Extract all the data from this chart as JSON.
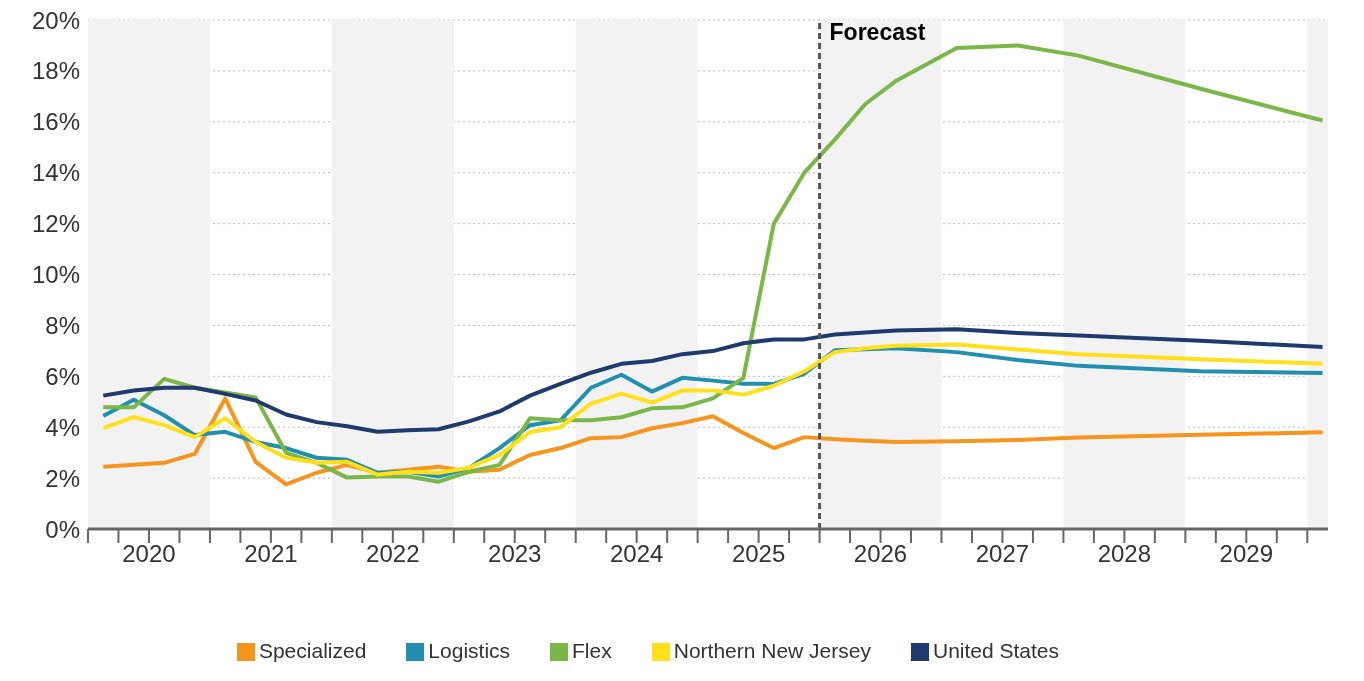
{
  "chart_data": {
    "type": "line",
    "x": [
      2020.125,
      2020.375,
      2020.625,
      2020.875,
      2021.125,
      2021.375,
      2021.625,
      2021.875,
      2022.125,
      2022.375,
      2022.625,
      2022.875,
      2023.125,
      2023.375,
      2023.625,
      2023.875,
      2024.125,
      2024.375,
      2024.625,
      2024.875,
      2025.125,
      2025.375,
      2025.625,
      2025.875,
      2026.125,
      2026.375,
      2026.625,
      2027.125,
      2027.625,
      2028.125,
      2029.125,
      2030.125
    ],
    "series": [
      {
        "name": "Specialized",
        "color": "#f7941d",
        "values": [
          2.45,
          2.52,
          2.6,
          2.95,
          5.13,
          2.64,
          1.75,
          2.21,
          2.52,
          2.21,
          2.33,
          2.45,
          2.25,
          2.33,
          2.91,
          3.18,
          3.57,
          3.61,
          3.96,
          4.16,
          4.43,
          3.77,
          3.18,
          3.61,
          3.53,
          3.47,
          3.42,
          3.45,
          3.5,
          3.6,
          3.7,
          3.8
        ]
      },
      {
        "name": "Logistics",
        "color": "#2190b0",
        "values": [
          4.44,
          5.08,
          4.47,
          3.69,
          3.82,
          3.42,
          3.18,
          2.8,
          2.72,
          2.21,
          2.25,
          2.06,
          2.4,
          3.18,
          4.08,
          4.27,
          5.55,
          6.06,
          5.4,
          5.94,
          5.83,
          5.71,
          5.7,
          6.1,
          7.02,
          7.06,
          7.1,
          6.95,
          6.64,
          6.41,
          6.2,
          6.13
        ]
      },
      {
        "name": "Flex",
        "color": "#7ab648",
        "values": [
          4.78,
          4.78,
          5.9,
          5.55,
          5.36,
          5.17,
          2.99,
          2.6,
          2.02,
          2.06,
          2.06,
          1.86,
          2.25,
          2.52,
          4.35,
          4.27,
          4.27,
          4.39,
          4.74,
          4.78,
          5.13,
          5.94,
          12.0,
          14.0,
          15.3,
          16.7,
          17.6,
          18.9,
          19.0,
          18.6,
          17.3,
          16.05
        ]
      },
      {
        "name": "Northern New Jersey",
        "color": "#ffe01b",
        "values": [
          3.96,
          4.4,
          4.08,
          3.61,
          4.35,
          3.42,
          2.8,
          2.6,
          2.64,
          2.14,
          2.25,
          2.21,
          2.41,
          2.91,
          3.81,
          4.0,
          4.93,
          5.32,
          4.97,
          5.44,
          5.44,
          5.28,
          5.63,
          6.2,
          6.95,
          7.1,
          7.2,
          7.25,
          7.05,
          6.87,
          6.67,
          6.49
        ]
      },
      {
        "name": "United States",
        "color": "#1f3a6e",
        "values": [
          5.24,
          5.44,
          5.55,
          5.55,
          5.31,
          5.05,
          4.5,
          4.2,
          4.04,
          3.82,
          3.88,
          3.92,
          4.23,
          4.62,
          5.24,
          5.7,
          6.14,
          6.49,
          6.6,
          6.87,
          6.99,
          7.3,
          7.45,
          7.45,
          7.64,
          7.72,
          7.8,
          7.85,
          7.7,
          7.6,
          7.4,
          7.15
        ]
      }
    ],
    "xlim": [
      2020,
      2030.17
    ],
    "xticks": [
      {
        "value": 2020,
        "label": null
      },
      {
        "value": 2020.25,
        "label": null
      },
      {
        "value": 2020.5,
        "label": "2020"
      },
      {
        "value": 2020.75,
        "label": null
      },
      {
        "value": 2021,
        "label": null
      },
      {
        "value": 2021.25,
        "label": null
      },
      {
        "value": 2021.5,
        "label": "2021"
      },
      {
        "value": 2021.75,
        "label": null
      },
      {
        "value": 2022,
        "label": null
      },
      {
        "value": 2022.25,
        "label": null
      },
      {
        "value": 2022.5,
        "label": "2022"
      },
      {
        "value": 2022.75,
        "label": null
      },
      {
        "value": 2023,
        "label": null
      },
      {
        "value": 2023.25,
        "label": null
      },
      {
        "value": 2023.5,
        "label": "2023"
      },
      {
        "value": 2023.75,
        "label": null
      },
      {
        "value": 2024,
        "label": null
      },
      {
        "value": 2024.25,
        "label": null
      },
      {
        "value": 2024.5,
        "label": "2024"
      },
      {
        "value": 2024.75,
        "label": null
      },
      {
        "value": 2025,
        "label": null
      },
      {
        "value": 2025.25,
        "label": null
      },
      {
        "value": 2025.5,
        "label": "2025"
      },
      {
        "value": 2025.75,
        "label": null
      },
      {
        "value": 2026,
        "label": null
      },
      {
        "value": 2026.25,
        "label": null
      },
      {
        "value": 2026.5,
        "label": "2026"
      },
      {
        "value": 2026.75,
        "label": null
      },
      {
        "value": 2027,
        "label": null
      },
      {
        "value": 2027.25,
        "label": null
      },
      {
        "value": 2027.5,
        "label": "2027"
      },
      {
        "value": 2027.75,
        "label": null
      },
      {
        "value": 2028,
        "label": null
      },
      {
        "value": 2028.25,
        "label": null
      },
      {
        "value": 2028.5,
        "label": "2028"
      },
      {
        "value": 2028.75,
        "label": null
      },
      {
        "value": 2029,
        "label": null
      },
      {
        "value": 2029.25,
        "label": null
      },
      {
        "value": 2029.5,
        "label": "2029"
      },
      {
        "value": 2029.75,
        "label": null
      },
      {
        "value": 2030,
        "label": null
      }
    ],
    "ylim": [
      0,
      20
    ],
    "yticks": [
      {
        "value": 0,
        "label": "0%"
      },
      {
        "value": 2,
        "label": "2%"
      },
      {
        "value": 4,
        "label": "4%"
      },
      {
        "value": 6,
        "label": "6%"
      },
      {
        "value": 8,
        "label": "8%"
      },
      {
        "value": 10,
        "label": "10%"
      },
      {
        "value": 12,
        "label": "12%"
      },
      {
        "value": 14,
        "label": "14%"
      },
      {
        "value": 16,
        "label": "16%"
      },
      {
        "value": 18,
        "label": "18%"
      },
      {
        "value": 20,
        "label": "20%"
      }
    ],
    "ref_lines": [
      {
        "axis": "x",
        "value": 2026,
        "label": "Forecast",
        "color": "#555555",
        "line_style": "dashed"
      }
    ],
    "bands": [
      {
        "axis": "x",
        "from": 2020,
        "to": 2021,
        "color": "#f2f2f2"
      },
      {
        "axis": "x",
        "from": 2022,
        "to": 2023,
        "color": "#f2f2f2"
      },
      {
        "axis": "x",
        "from": 2024,
        "to": 2025,
        "color": "#f2f2f2"
      },
      {
        "axis": "x",
        "from": 2026,
        "to": 2027,
        "color": "#f2f2f2"
      },
      {
        "axis": "x",
        "from": 2028,
        "to": 2029,
        "color": "#f2f2f2"
      },
      {
        "axis": "x",
        "from": 2030,
        "to": 2030.17,
        "color": "#f2f2f2"
      }
    ],
    "grid": "y",
    "legend": "bottom",
    "marker": "none",
    "line_style": "solid"
  }
}
